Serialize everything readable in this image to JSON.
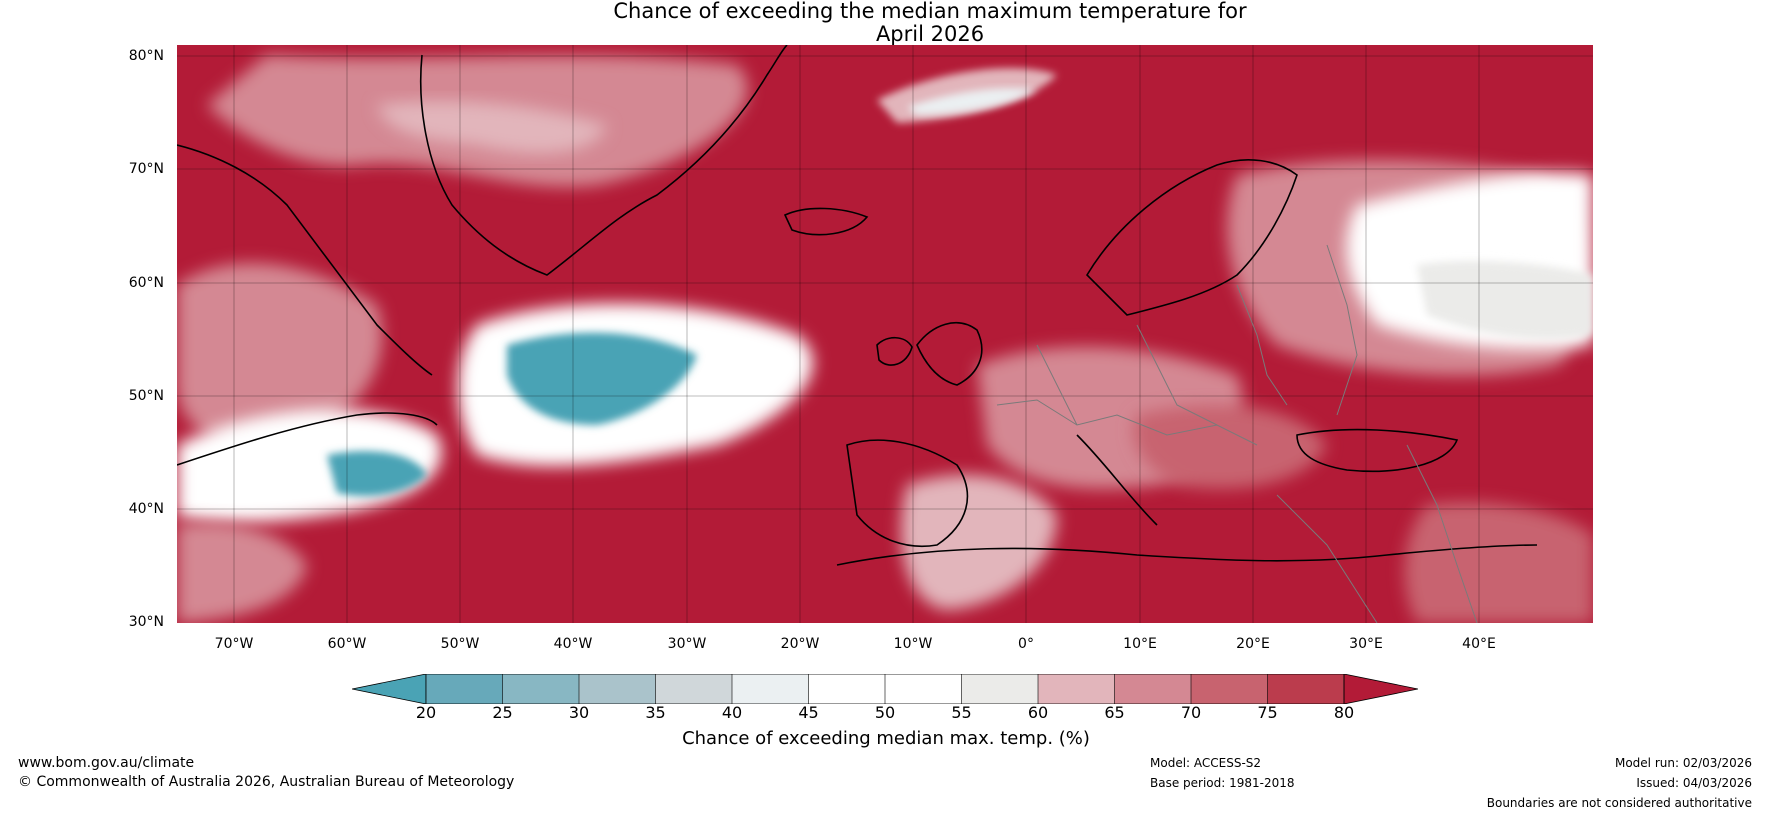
{
  "title": {
    "line1": "Chance of exceeding the median maximum temperature for",
    "line2": "April 2026"
  },
  "map": {
    "projection": "PlateCarree",
    "extent_lon": [
      -75,
      50
    ],
    "extent_lat": [
      30,
      81
    ],
    "lat_labels": [
      "80°N",
      "70°N",
      "60°N",
      "50°N",
      "40°N",
      "30°N"
    ],
    "lon_labels": [
      "70°W",
      "60°W",
      "50°W",
      "40°W",
      "30°W",
      "20°W",
      "10°W",
      "0°",
      "10°E",
      "20°E",
      "30°E",
      "40°E"
    ],
    "dominant_category": "80+",
    "regions": [
      {
        "name": "North Atlantic mid-latitudes",
        "category": "20-25"
      },
      {
        "name": "Off Nova Scotia",
        "category": "20-25"
      },
      {
        "name": "Northern Scandinavia / Russia",
        "category": "45-55"
      },
      {
        "name": "Svalbard sea ice zone",
        "category": "40-50"
      },
      {
        "name": "Western Europe",
        "category": "60-70"
      },
      {
        "name": "Mediterranean",
        "category": "80+"
      }
    ]
  },
  "colorbar": {
    "label": "Chance of exceeding median max. temp. (%)",
    "ticks": [
      "20",
      "25",
      "30",
      "35",
      "40",
      "45",
      "50",
      "55",
      "60",
      "65",
      "70",
      "75",
      "80"
    ],
    "colors": {
      "under": "#4aa3b5",
      "bins": [
        "#67a9ba",
        "#88b7c3",
        "#aac3cb",
        "#d0d7da",
        "#ebf0f2",
        "#ffffff",
        "#ffffff",
        "#ebebe9",
        "#e2b5bb",
        "#d48893",
        "#c8636f",
        "#bb3c4d"
      ],
      "over": "#b31b37"
    }
  },
  "footer": {
    "website": "www.bom.gov.au/climate",
    "copyright": "© Commonwealth of Australia 2026, Australian Bureau of Meteorology",
    "model": "Model: ACCESS-S2",
    "base_period": "Base period: 1981-2018",
    "model_run": "Model run: 02/03/2026",
    "issued": "Issued: 04/03/2026",
    "disclaimer": "Boundaries are not considered authoritative"
  }
}
